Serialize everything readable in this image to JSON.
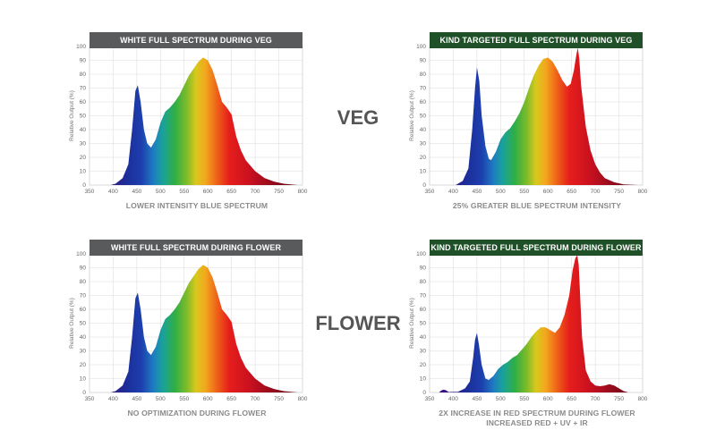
{
  "labels": {
    "veg": "VEG",
    "flower": "FLOWER"
  },
  "chart_data": [
    {
      "type": "area",
      "title": "WHITE FULL SPECTRUM DURING VEG",
      "title_style": "gray",
      "caption": [
        "LOWER INTENSITY BLUE SPECTRUM"
      ],
      "xlabel": "",
      "ylabel": "Relative Output (%)",
      "xlim": [
        350,
        800
      ],
      "ylim": [
        0,
        100
      ],
      "x_ticks": [
        350,
        400,
        450,
        500,
        550,
        600,
        650,
        700,
        750,
        800
      ],
      "y_ticks": [
        0,
        10,
        20,
        30,
        40,
        50,
        60,
        70,
        80,
        90,
        100
      ],
      "grid": true,
      "x": [
        395,
        405,
        420,
        432,
        440,
        447,
        452,
        458,
        465,
        472,
        480,
        490,
        500,
        510,
        520,
        530,
        540,
        550,
        560,
        570,
        580,
        590,
        600,
        610,
        620,
        630,
        640,
        650,
        660,
        670,
        680,
        700,
        720,
        740,
        760,
        780,
        790
      ],
      "values": [
        0,
        1,
        5,
        15,
        40,
        68,
        72,
        60,
        40,
        30,
        27,
        33,
        45,
        53,
        56,
        60,
        65,
        72,
        79,
        84,
        89,
        92,
        90,
        83,
        72,
        60,
        56,
        51,
        35,
        25,
        18,
        10,
        5,
        2.5,
        1,
        0.3,
        0
      ]
    },
    {
      "type": "area",
      "title": "KIND TARGETED FULL SPECTRUM DURING VEG",
      "title_style": "green",
      "caption": [
        "25% GREATER BLUE SPECTRUM INTENSITY"
      ],
      "xlabel": "",
      "ylabel": "Relative Output (%)",
      "xlim": [
        350,
        800
      ],
      "ylim": [
        0,
        100
      ],
      "x_ticks": [
        350,
        400,
        450,
        500,
        550,
        600,
        650,
        700,
        750,
        800
      ],
      "y_ticks": [
        0,
        10,
        20,
        30,
        40,
        50,
        60,
        70,
        80,
        90,
        100
      ],
      "grid": true,
      "x": [
        405,
        420,
        432,
        440,
        446,
        450,
        455,
        460,
        468,
        475,
        480,
        490,
        500,
        510,
        520,
        530,
        540,
        550,
        560,
        570,
        580,
        590,
        600,
        610,
        620,
        630,
        640,
        648,
        655,
        660,
        663,
        666,
        670,
        680,
        690,
        700,
        710,
        720,
        740,
        760,
        790
      ],
      "values": [
        0,
        3,
        12,
        40,
        70,
        85,
        75,
        50,
        28,
        19,
        18,
        24,
        33,
        38,
        41,
        46,
        52,
        60,
        70,
        79,
        86,
        91,
        92,
        89,
        83,
        76,
        71,
        73,
        83,
        94,
        99,
        92,
        72,
        42,
        25,
        15,
        9,
        5,
        2,
        0.5,
        0
      ]
    },
    {
      "type": "area",
      "title": "WHITE FULL SPECTRUM DURING FLOWER",
      "title_style": "gray",
      "caption": [
        "NO OPTIMIZATION DURING FLOWER"
      ],
      "xlabel": "",
      "ylabel": "Relative Output (%)",
      "xlim": [
        350,
        800
      ],
      "ylim": [
        0,
        100
      ],
      "x_ticks": [
        350,
        400,
        450,
        500,
        550,
        600,
        650,
        700,
        750,
        800
      ],
      "y_ticks": [
        0,
        10,
        20,
        30,
        40,
        50,
        60,
        70,
        80,
        90,
        100
      ],
      "grid": true,
      "x": [
        395,
        405,
        420,
        432,
        440,
        447,
        452,
        458,
        465,
        472,
        480,
        490,
        500,
        510,
        520,
        530,
        540,
        550,
        560,
        570,
        580,
        590,
        600,
        610,
        620,
        630,
        640,
        650,
        660,
        670,
        680,
        700,
        720,
        740,
        760,
        780,
        790
      ],
      "values": [
        0,
        1,
        5,
        15,
        40,
        68,
        72,
        60,
        40,
        30,
        27,
        33,
        45,
        53,
        56,
        60,
        65,
        72,
        79,
        84,
        89,
        92,
        90,
        83,
        72,
        60,
        56,
        51,
        35,
        25,
        18,
        10,
        5,
        2.5,
        1,
        0.3,
        0
      ]
    },
    {
      "type": "area",
      "title": "KIND TARGETED FULL SPECTRUM DURING FLOWER",
      "title_style": "green",
      "caption": [
        "2X INCREASE IN RED SPECTRUM DURING FLOWER",
        "INCREASED RED + UV + IR"
      ],
      "xlabel": "",
      "ylabel": "Relative Output (%)",
      "xlim": [
        350,
        800
      ],
      "ylim": [
        0,
        100
      ],
      "x_ticks": [
        350,
        400,
        450,
        500,
        550,
        600,
        650,
        700,
        750,
        800
      ],
      "y_ticks": [
        0,
        10,
        20,
        30,
        40,
        50,
        60,
        70,
        80,
        90,
        100
      ],
      "grid": true,
      "x": [
        370,
        375,
        380,
        385,
        390,
        410,
        425,
        435,
        442,
        446,
        450,
        454,
        460,
        468,
        475,
        485,
        495,
        505,
        515,
        525,
        535,
        545,
        555,
        565,
        575,
        585,
        595,
        605,
        615,
        625,
        635,
        645,
        652,
        658,
        662,
        665,
        668,
        672,
        680,
        690,
        700,
        710,
        720,
        730,
        740,
        750,
        760,
        770
      ],
      "values": [
        0,
        1.5,
        2,
        1.5,
        0.3,
        0.5,
        3,
        8,
        25,
        38,
        43,
        35,
        20,
        10,
        9,
        12,
        17,
        20,
        22,
        25,
        27,
        31,
        35,
        40,
        44,
        47,
        47,
        45,
        43,
        47,
        56,
        70,
        88,
        97,
        99,
        92,
        70,
        40,
        16,
        8,
        5,
        4.5,
        5,
        6,
        5,
        3,
        1,
        0
      ]
    }
  ]
}
